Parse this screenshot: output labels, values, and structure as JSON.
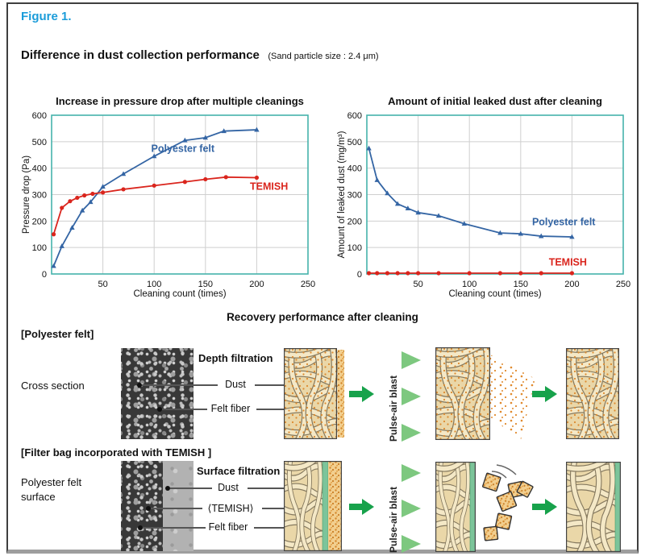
{
  "figure_label": "Figure 1.",
  "title": "Difference in dust collection performance",
  "subtitle": "(Sand particle size : 2.4 μm)",
  "section2_title": "Recovery performance after cleaning",
  "chart_data": [
    {
      "type": "line",
      "title": "Increase in pressure drop after multiple cleanings",
      "xlabel": "Cleaning count (times)",
      "ylabel": "Pressure drop (Pa)",
      "xlim": [
        0,
        250
      ],
      "ylim": [
        0,
        600
      ],
      "xticks": [
        50,
        100,
        150,
        200,
        250
      ],
      "yticks": [
        0,
        100,
        200,
        300,
        400,
        500,
        600
      ],
      "grid": true,
      "legend_position": "inline-labels",
      "series": [
        {
          "name": "Polyester felt",
          "color": "#3465a4",
          "marker": "triangle",
          "points": [
            [
              2,
              30
            ],
            [
              10,
              105
            ],
            [
              20,
              175
            ],
            [
              30,
              240
            ],
            [
              38,
              272
            ],
            [
              50,
              330
            ],
            [
              70,
              378
            ],
            [
              100,
              445
            ],
            [
              130,
              505
            ],
            [
              150,
              515
            ],
            [
              168,
              540
            ],
            [
              200,
              545
            ]
          ],
          "label_at": [
            128,
            462
          ]
        },
        {
          "name": "TEMISH",
          "color": "#da251d",
          "marker": "circle",
          "points": [
            [
              2,
              150
            ],
            [
              10,
              250
            ],
            [
              18,
              275
            ],
            [
              25,
              288
            ],
            [
              32,
              297
            ],
            [
              40,
              303
            ],
            [
              50,
              308
            ],
            [
              70,
              320
            ],
            [
              100,
              334
            ],
            [
              130,
              348
            ],
            [
              150,
              358
            ],
            [
              170,
              366
            ],
            [
              200,
              364
            ]
          ],
          "label_at": [
            212,
            318
          ]
        }
      ]
    },
    {
      "type": "line",
      "title": "Amount of initial leaked dust after cleaning",
      "xlabel": "Cleaning count (times)",
      "ylabel": "Amount of leaked dust (mg/m³)",
      "xlim": [
        0,
        250
      ],
      "ylim": [
        0,
        600
      ],
      "xticks": [
        50,
        100,
        150,
        200,
        250
      ],
      "yticks": [
        0,
        100,
        200,
        300,
        400,
        500,
        600
      ],
      "grid": true,
      "legend_position": "inline-labels",
      "series": [
        {
          "name": "Polyester felt",
          "color": "#3465a4",
          "marker": "triangle",
          "points": [
            [
              2,
              475
            ],
            [
              10,
              355
            ],
            [
              20,
              305
            ],
            [
              30,
              265
            ],
            [
              40,
              248
            ],
            [
              50,
              232
            ],
            [
              70,
              220
            ],
            [
              95,
              190
            ],
            [
              130,
              155
            ],
            [
              150,
              152
            ],
            [
              170,
              143
            ],
            [
              200,
              140
            ]
          ],
          "label_at": [
            192,
            185
          ]
        },
        {
          "name": "TEMISH",
          "color": "#da251d",
          "marker": "circle",
          "points": [
            [
              2,
              3
            ],
            [
              10,
              3
            ],
            [
              20,
              3
            ],
            [
              30,
              3
            ],
            [
              40,
              3
            ],
            [
              50,
              3
            ],
            [
              70,
              3
            ],
            [
              100,
              3
            ],
            [
              130,
              3
            ],
            [
              150,
              3
            ],
            [
              170,
              3
            ],
            [
              200,
              3
            ]
          ],
          "label_at": [
            196,
            32
          ]
        }
      ]
    }
  ],
  "recovery": {
    "row1": {
      "heading": "[Polyester felt]",
      "side_label": "Cross section",
      "filtration_type": "Depth filtration",
      "callout_dust": "Dust",
      "callout_fiber": "Felt fiber",
      "pulse_label": "Pulse-air blast"
    },
    "row2": {
      "heading": "[Filter bag incorporated with TEMISH ]",
      "side_label": "Polyester felt\nsurface",
      "filtration_type": "Surface filtration",
      "callout_dust": "Dust",
      "callout_temish": "⟨TEMISH⟩",
      "callout_fiber": "Felt fiber",
      "pulse_label": "Pulse-air blast"
    }
  },
  "colors": {
    "figure_label": "#1b9cd9",
    "series_polyester": "#3465a4",
    "series_temish": "#da251d",
    "plot_border": "#45b3ab",
    "grid": "#cfcfcf",
    "arrow_green": "#17a24b",
    "pulse_triangle": "#7dc87f",
    "temish_membrane": "#7cc49a",
    "dust_orange": "#dd8a2e"
  }
}
